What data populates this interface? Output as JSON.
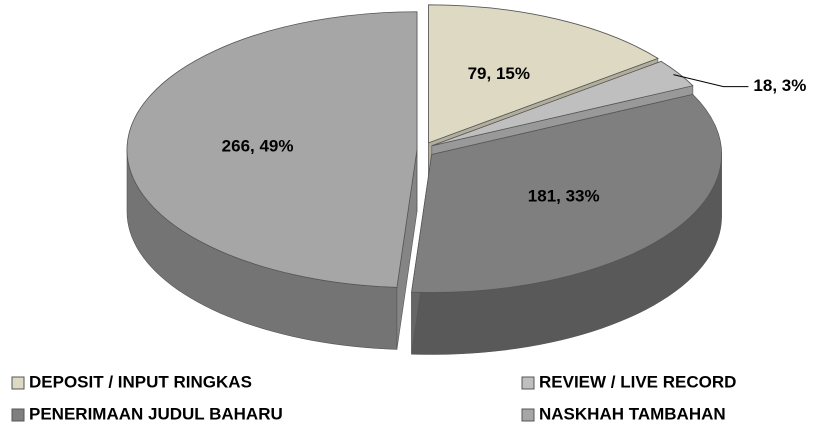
{
  "chart_data": {
    "type": "pie",
    "categories": [
      "DEPOSIT / INPUT RINGKAS",
      "REVIEW / LIVE RECORD",
      "PENERIMAAN JUDUL BAHARU",
      "NASKHAH TAMBAHAN"
    ],
    "values": [
      79,
      18,
      181,
      266
    ],
    "value_labels": [
      "79, 15%",
      "18, 3%",
      "181, 33%",
      "266, 49%"
    ],
    "colors": [
      "#ddd9c3",
      "#bfbfbf",
      "#7f7f7f",
      "#a6a6a6"
    ],
    "legend": "bottom"
  }
}
